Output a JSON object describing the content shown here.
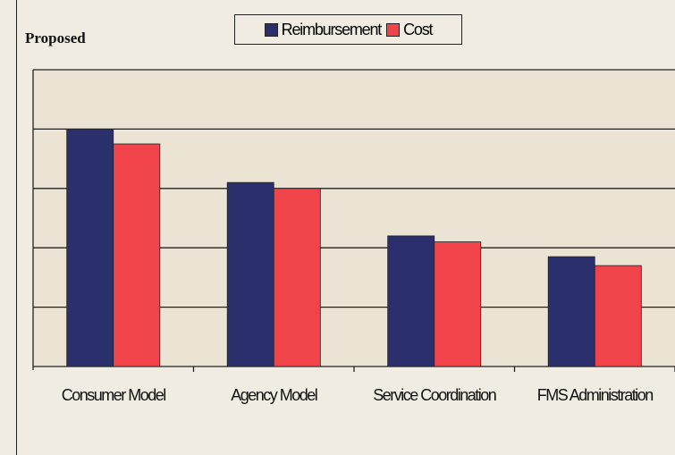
{
  "chart_data": {
    "type": "bar",
    "title": "Proposed",
    "categories": [
      "Consumer Model",
      "Agency Model",
      "Service Coordination",
      "FMS Administration"
    ],
    "series": [
      {
        "name": "Reimbursement",
        "color": "#2b2f6b",
        "values": [
          4.0,
          3.1,
          2.2,
          1.85
        ]
      },
      {
        "name": "Cost",
        "color": "#f0434a",
        "values": [
          3.75,
          3.0,
          2.1,
          1.7
        ]
      }
    ],
    "ylim": [
      0,
      5
    ],
    "yticks": [
      0,
      1,
      2,
      3,
      4,
      5
    ],
    "grid": true,
    "legend": "top"
  }
}
